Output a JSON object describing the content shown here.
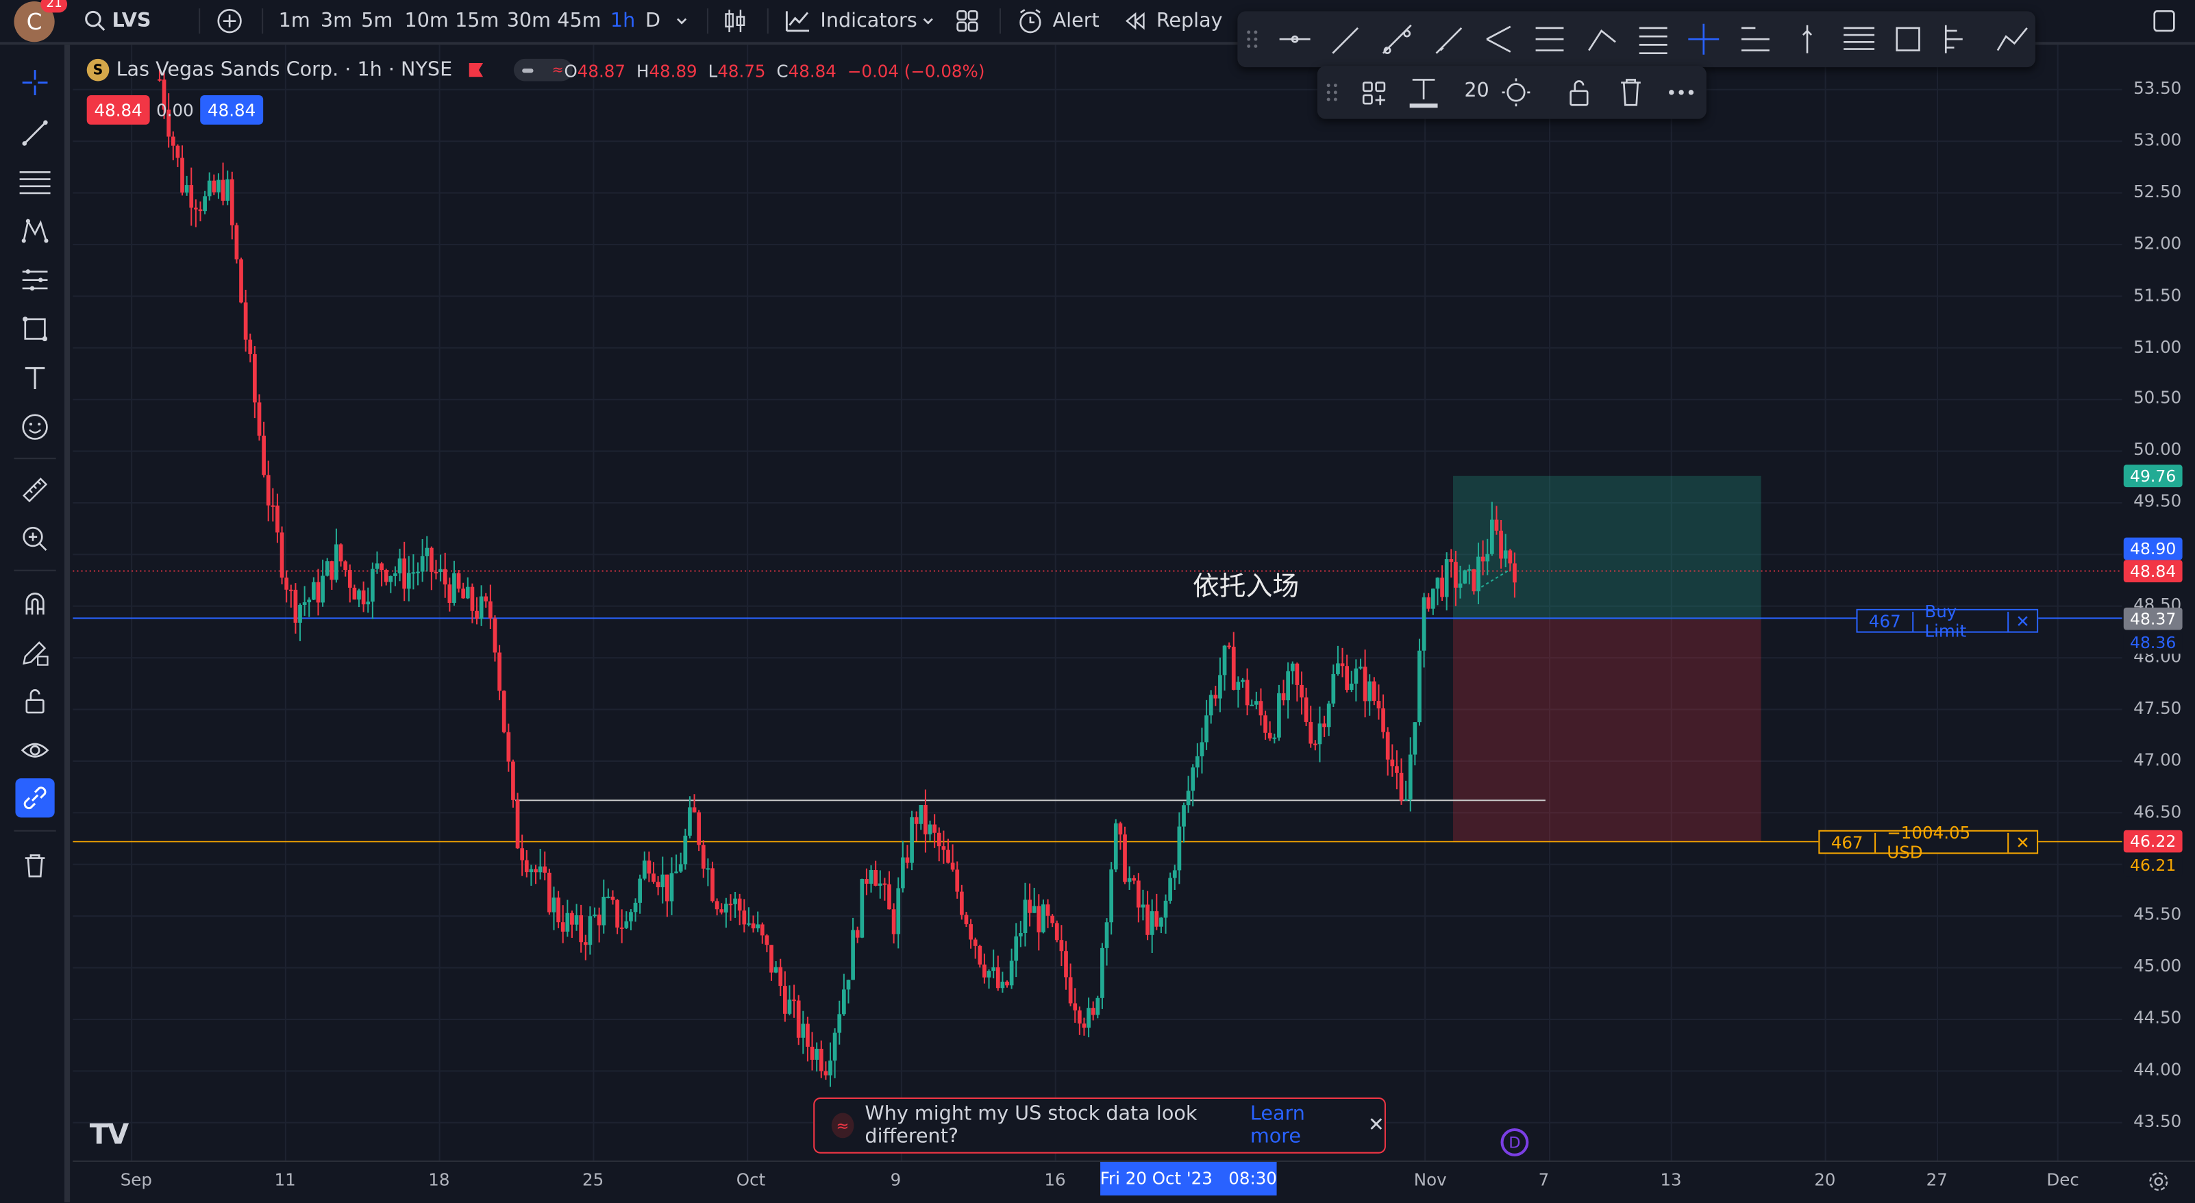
{
  "colors": {
    "up": "#22ab94",
    "down": "#f23645",
    "accent": "#2962ff",
    "bg": "#131722"
  },
  "header": {
    "avatar_letter": "C",
    "notifications": "21",
    "symbol": "LVS",
    "intervals": [
      "1m",
      "3m",
      "5m",
      "10m",
      "15m",
      "30m",
      "45m",
      "1h",
      "D"
    ],
    "active_interval": "1h",
    "indicators_label": "Indicators",
    "alert_label": "Alert",
    "replay_label": "Replay"
  },
  "legend": {
    "title": "Las Vegas Sands Corp. · 1h · NYSE",
    "open_label": "O",
    "open": "48.87",
    "high_label": "H",
    "high": "48.89",
    "low_label": "L",
    "low": "48.75",
    "close_label": "C",
    "close": "48.84",
    "change": "−0.04 (−0.08%)",
    "sell_price": "48.84",
    "spread": "0.00",
    "buy_price": "48.84"
  },
  "drawing_toolbar": {
    "font_size": "20"
  },
  "annotation_text": "依托入场",
  "orders": {
    "buy_limit_qty": "467",
    "buy_limit_label": "Buy Limit",
    "stop_qty": "467",
    "stop_pnl": "−1004.05 USD"
  },
  "price_axis": {
    "ticks": [
      "53.50",
      "53.00",
      "52.50",
      "52.00",
      "51.50",
      "51.00",
      "50.50",
      "50.00",
      "49.50",
      "49.00",
      "48.50",
      "48.00",
      "47.50",
      "47.00",
      "46.50",
      "46.00",
      "45.50",
      "45.00",
      "44.50",
      "44.00",
      "43.50"
    ],
    "tags": [
      {
        "value": "49.76",
        "color": "#22ab94"
      },
      {
        "value": "48.90",
        "color": "#2962ff"
      },
      {
        "value": "48.84",
        "color": "#f23645"
      },
      {
        "value": "48.37",
        "color": "#787b86"
      },
      {
        "value": "48.36",
        "color": "#2962ff"
      },
      {
        "value": "46.22",
        "color": "#f23645"
      },
      {
        "value": "46.21",
        "color": "#f7a600"
      }
    ]
  },
  "time_axis": {
    "labels": [
      "Sep",
      "11",
      "18",
      "25",
      "Oct",
      "9",
      "16",
      "Nov",
      "7",
      "13",
      "20",
      "27",
      "Dec"
    ],
    "crosshair_label": "Fri 20 Oct '23   08:30"
  },
  "banner": {
    "text": "Why might my US stock data look different?",
    "link": "Learn more"
  },
  "watermark": "TV",
  "dividend_marker": "D",
  "chart_data": {
    "type": "candlestick",
    "title": "Las Vegas Sands Corp. · 1h · NYSE",
    "ylim": [
      43.2,
      53.8
    ],
    "x_range": [
      "Sep",
      "Dec"
    ],
    "path_y": [
      53.6,
      52.6,
      52.4,
      52.6,
      50.9,
      49.4,
      48.5,
      48.6,
      49.0,
      48.6,
      48.9,
      48.8,
      48.9,
      48.7,
      48.5,
      48.4,
      46.3,
      45.9,
      45.5,
      45.3,
      45.6,
      45.4,
      46.1,
      45.7,
      46.5,
      45.7,
      45.6,
      45.3,
      44.8,
      44.3,
      44.1,
      45.0,
      46.1,
      45.4,
      46.5,
      46.2,
      45.7,
      45.1,
      44.7,
      45.6,
      45.4,
      44.8,
      44.4,
      46.3,
      45.6,
      45.3,
      46.4,
      47.4,
      48.0,
      47.6,
      47.3,
      47.8,
      47.2,
      47.9,
      47.8,
      47.5,
      46.4,
      48.6,
      48.8,
      48.7,
      49.2,
      48.9
    ],
    "levels": {
      "buy_limit": 48.37,
      "stop": 46.22,
      "target": 49.76,
      "support": 46.62,
      "last": 48.84
    }
  }
}
